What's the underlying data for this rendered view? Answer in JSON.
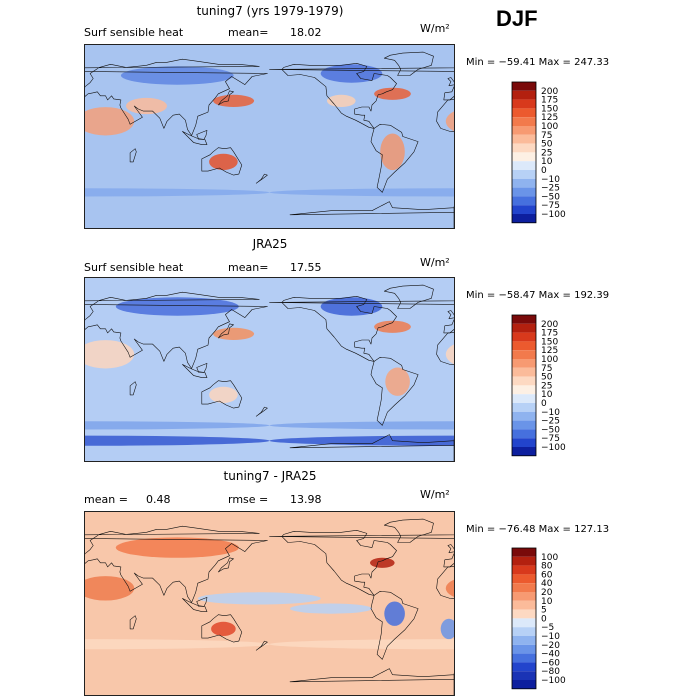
{
  "season": "DJF",
  "colors": {
    "frame": "#222222",
    "coast": "#111111"
  },
  "panels": [
    {
      "id": "model",
      "title": "tuning7 (yrs 1979-1979)",
      "variable": "Surf sensible heat",
      "stat1_label": "mean=",
      "stat1_value": "18.02",
      "stat2_label": "",
      "stat2_value": "",
      "units": "W/m²",
      "min_max": "Min = −59.41  Max = 247.33",
      "base_color": "#a8c4f0",
      "colorbar": {
        "labels": [
          "200",
          "175",
          "150",
          "125",
          "100",
          "75",
          "50",
          "25",
          "10",
          "0",
          "−10",
          "−25",
          "−50",
          "−75",
          "−100"
        ],
        "colors": [
          "#7a0a0a",
          "#b3200f",
          "#d8391c",
          "#ec5a2e",
          "#f27a4c",
          "#f79a72",
          "#fbbb9a",
          "#fdd9c2",
          "#fdf0e4",
          "#dce9fa",
          "#b7d1f6",
          "#8fb3ef",
          "#6a94e8",
          "#4670de",
          "#2244cc",
          "#0d1f9e"
        ]
      }
    },
    {
      "id": "obs",
      "title": "JRA25",
      "variable": "Surf sensible heat",
      "stat1_label": "mean=",
      "stat1_value": "17.55",
      "stat2_label": "",
      "stat2_value": "",
      "units": "W/m²",
      "min_max": "Min = −58.47  Max = 192.39",
      "base_color": "#b4cdf4",
      "colorbar": {
        "labels": [
          "200",
          "175",
          "150",
          "125",
          "100",
          "75",
          "50",
          "25",
          "10",
          "0",
          "−10",
          "−25",
          "−50",
          "−75",
          "−100"
        ],
        "colors": [
          "#7a0a0a",
          "#b3200f",
          "#d8391c",
          "#ec5a2e",
          "#f27a4c",
          "#f79a72",
          "#fbbb9a",
          "#fdd9c2",
          "#fdf0e4",
          "#dce9fa",
          "#b7d1f6",
          "#8fb3ef",
          "#6a94e8",
          "#4670de",
          "#2244cc",
          "#0d1f9e"
        ]
      }
    },
    {
      "id": "diff",
      "title": "tuning7 - JRA25",
      "variable": "",
      "stat1_label": "mean =",
      "stat1_value": "0.48",
      "stat2_label": "rmse =",
      "stat2_value": "13.98",
      "units": "W/m²",
      "min_max": "Min = −76.48  Max = 127.13",
      "base_color": "#f8c7aa",
      "colorbar": {
        "labels": [
          "100",
          "80",
          "60",
          "40",
          "20",
          "10",
          "5",
          "0",
          "−5",
          "−10",
          "−20",
          "−40",
          "−60",
          "−80",
          "−100"
        ],
        "colors": [
          "#7a0a0a",
          "#b3200f",
          "#d8391c",
          "#ec5a2e",
          "#f27a4c",
          "#f79a72",
          "#fbbb9a",
          "#fdd9c2",
          "#dce9fa",
          "#b7d1f6",
          "#8fb3ef",
          "#6a94e8",
          "#4670de",
          "#2244cc",
          "#1a33b5",
          "#0d1f9e"
        ]
      }
    }
  ]
}
